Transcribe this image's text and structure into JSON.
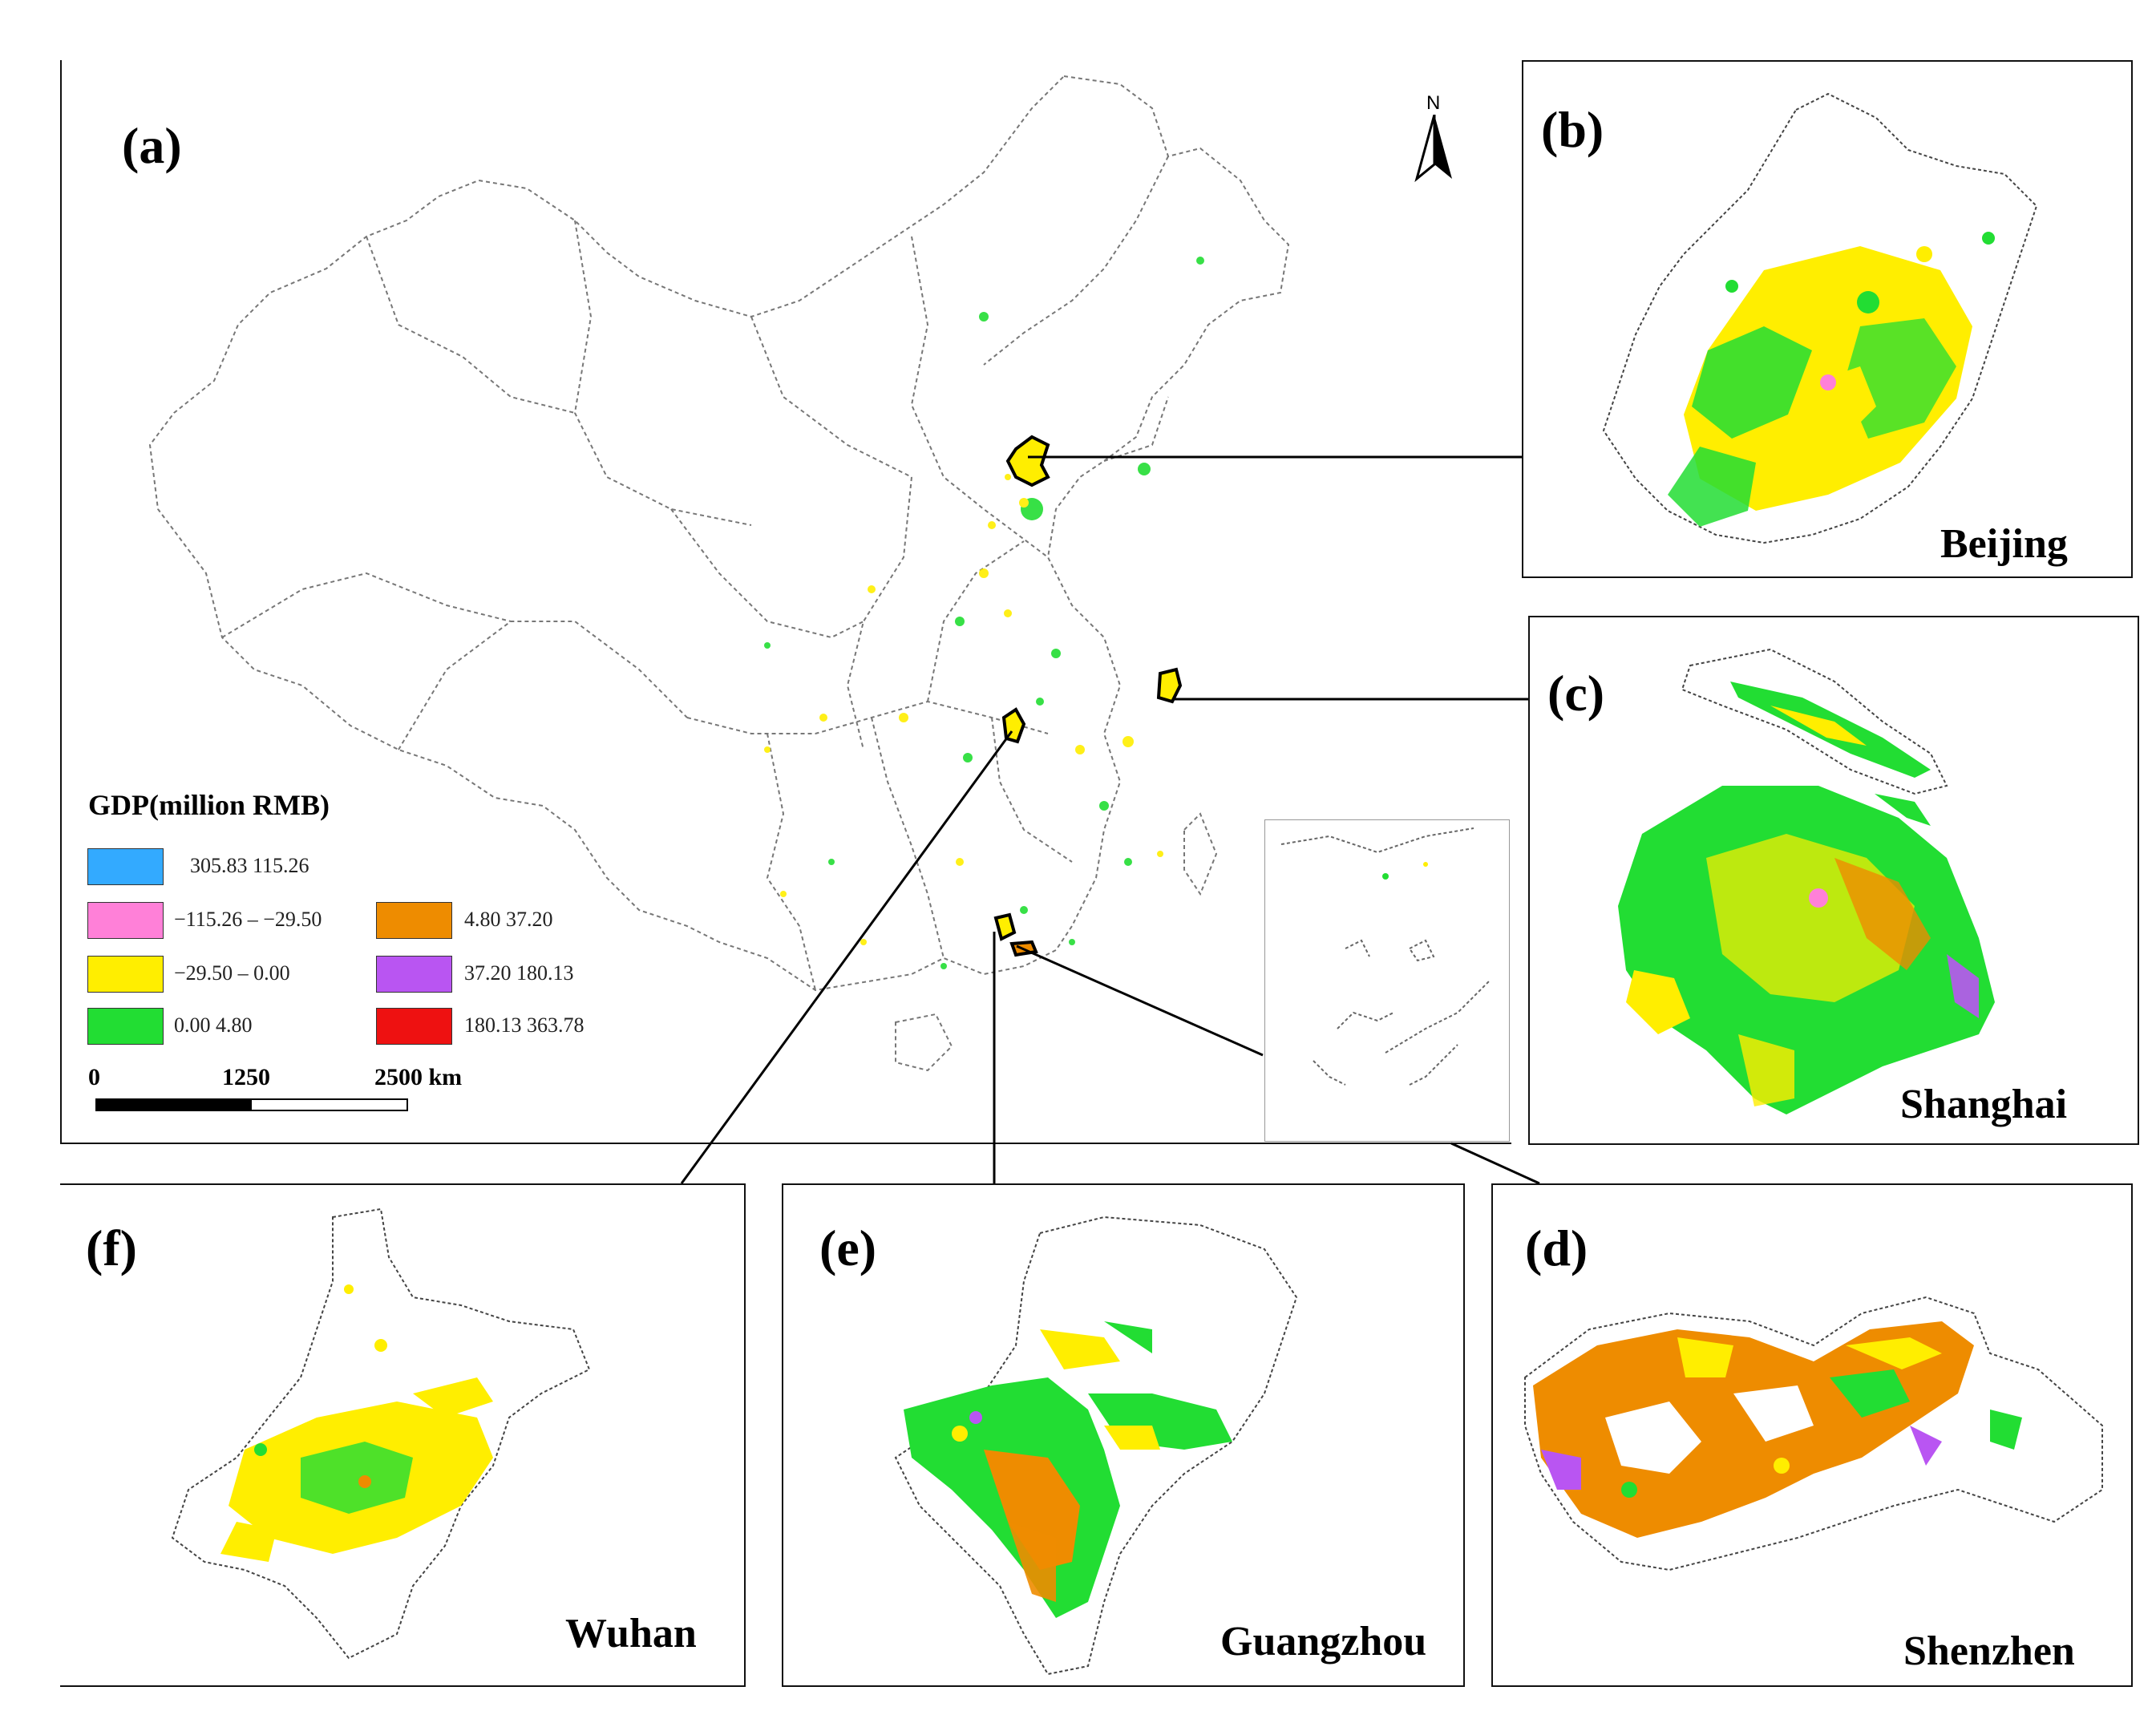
{
  "panels": {
    "a": {
      "label": "(a)"
    },
    "b": {
      "label": "(b)",
      "city": "Beijing"
    },
    "c": {
      "label": "(c)",
      "city": "Shanghai"
    },
    "d": {
      "label": "(d)",
      "city": "Shenzhen"
    },
    "e": {
      "label": "(e)",
      "city": "Guangzhou"
    },
    "f": {
      "label": "(f)",
      "city": "Wuhan"
    }
  },
  "legend": {
    "title": "GDP(million RMB)",
    "classes": [
      {
        "label": "305.83   115.26",
        "color": "#33aaff"
      },
      {
        "label": "−115.26 – −29.50",
        "color": "#ff80d8"
      },
      {
        "label": "−29.50 – 0.00",
        "color": "#ffee00"
      },
      {
        "label": "0.00   4.80",
        "color": "#22dd33"
      },
      {
        "label": "4.80   37.20",
        "color": "#ee8c00"
      },
      {
        "label": "37.20   180.13",
        "color": "#b955f2"
      },
      {
        "label": "180.13   363.78",
        "color": "#ee1111"
      }
    ]
  },
  "scale_bar": {
    "ticks": [
      "0",
      "1250",
      "2500 km"
    ]
  },
  "north_arrow": {
    "label": "N"
  }
}
